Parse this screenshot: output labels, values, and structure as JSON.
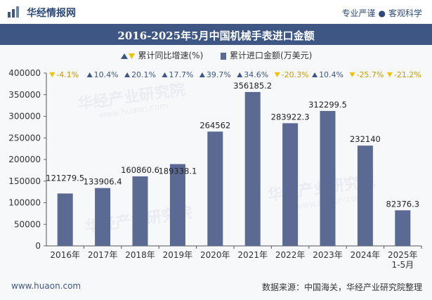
{
  "header": {
    "brand": "华经情报网",
    "slogan_left": "专业严谨",
    "slogan_right": "客观科学",
    "title": "2016-2025年5月中国机械手表进口金额"
  },
  "legend": {
    "rate_label": "累计同比增速(%)",
    "amount_label": "累计进口金额(万美元)"
  },
  "watermark": {
    "text": "华经产业研究院",
    "sub": "www.huaon.com"
  },
  "footer": {
    "site": "www.huaon.com",
    "source": "数据来源：中国海关，华经产业研究院整理"
  },
  "colors": {
    "bar": "#5b6a93",
    "up": "#3d5684",
    "down": "#f2c200",
    "title_bg": "#3d5684"
  },
  "chart_data": {
    "type": "bar",
    "title": "2016-2025年5月中国机械手表进口金额",
    "categories": [
      "2016年",
      "2017年",
      "2018年",
      "2019年",
      "2020年",
      "2021年",
      "2022年",
      "2023年",
      "2024年",
      "2025年\n1-5月"
    ],
    "series": [
      {
        "name": "累计进口金额(万美元)",
        "values": [
          121279.5,
          133906.4,
          160860.6,
          189338.1,
          264562,
          356185.2,
          283922.3,
          312299.5,
          232140,
          82376.3
        ],
        "labels": [
          "121279.5",
          "133906.4",
          "160860.6",
          "189338.1",
          "264562",
          "356185.2",
          "283922.3",
          "312299.5",
          "232140",
          "82376.3"
        ]
      },
      {
        "name": "累计同比增速(%)",
        "values": [
          -4.1,
          10.4,
          20.1,
          17.7,
          39.7,
          34.6,
          -20.3,
          10.4,
          -25.7,
          -21.2
        ],
        "labels": [
          "-4.1%",
          "10.4%",
          "20.1%",
          "17.7%",
          "39.7%",
          "34.6%",
          "-20.3%",
          "10.4%",
          "-25.7%",
          "-21.2%"
        ]
      }
    ],
    "ylim": [
      0,
      400000
    ],
    "yticks": [
      "0",
      "50000",
      "100000",
      "150000",
      "200000",
      "250000",
      "300000",
      "350000",
      "400000"
    ],
    "xlabel": "",
    "ylabel": ""
  }
}
